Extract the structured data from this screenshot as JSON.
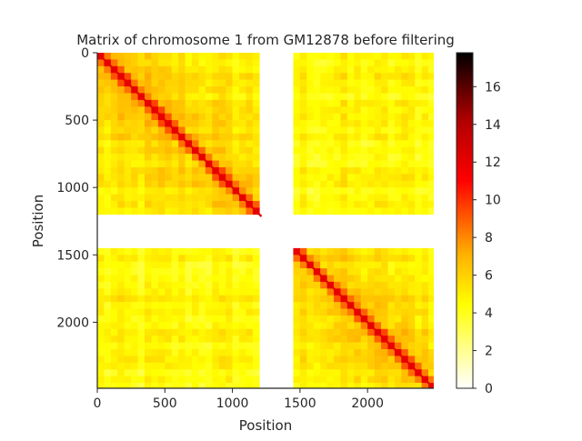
{
  "chart_data": {
    "type": "heatmap",
    "title": "Matrix of chromosome 1 from GM12878 before filtering",
    "xlabel": "Position",
    "ylabel": "Position",
    "matrix_size": 2490,
    "xlim": [
      0,
      2490
    ],
    "ylim": [
      2490,
      0
    ],
    "x_ticks": [
      0,
      500,
      1000,
      1500,
      2000
    ],
    "x_tick_labels": [
      "0",
      "500",
      "1000",
      "1500",
      "2000"
    ],
    "y_ticks": [
      0,
      500,
      1000,
      1500,
      2000
    ],
    "y_tick_labels": [
      "0",
      "500",
      "1000",
      "1500",
      "2000"
    ],
    "colormap": "hot_r",
    "colorbar": {
      "range": [
        0,
        17.8
      ],
      "ticks": [
        0,
        2,
        4,
        6,
        8,
        10,
        12,
        14,
        16
      ],
      "tick_labels": [
        "0",
        "2",
        "4",
        "6",
        "8",
        "10",
        "12",
        "14",
        "16"
      ]
    },
    "empty_region": [
      1215,
      1440
    ],
    "diagonal_max": 12,
    "background_value": 4.5,
    "grid": false
  }
}
